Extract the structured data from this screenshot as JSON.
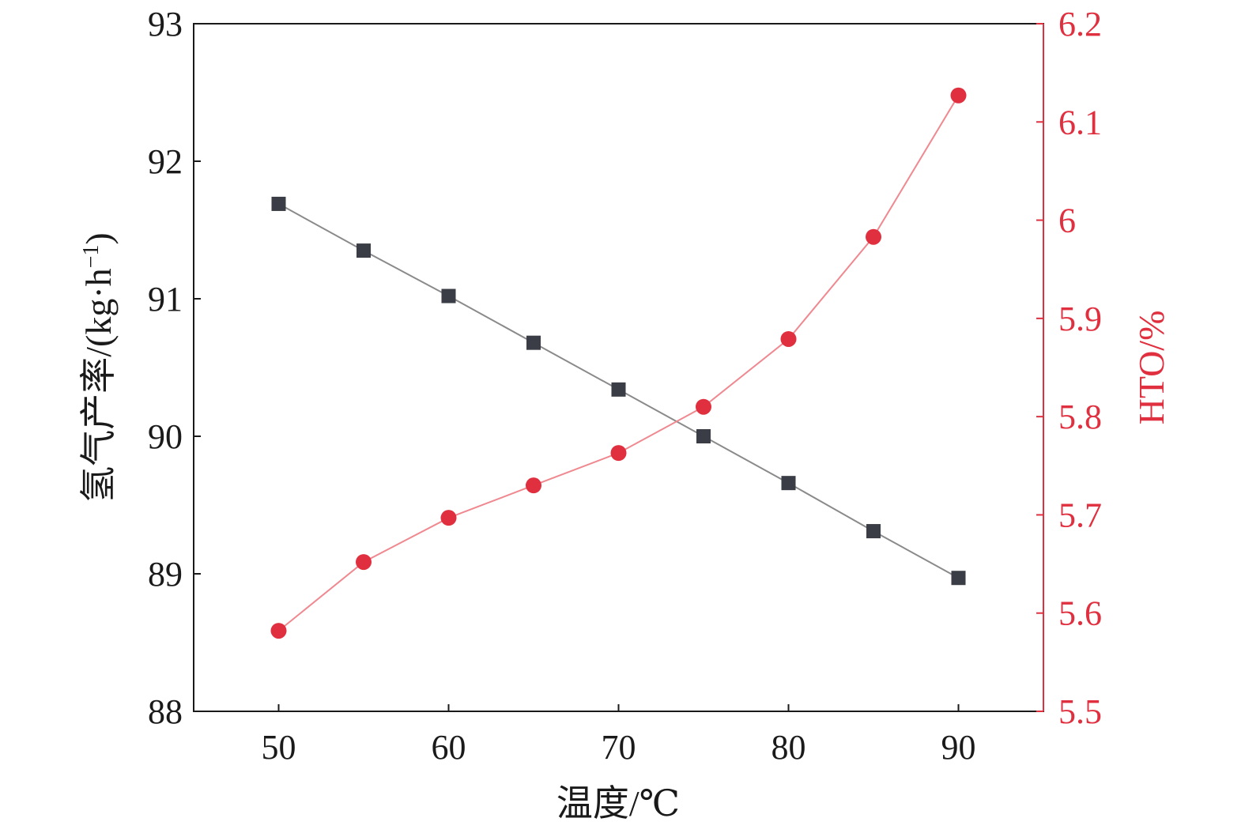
{
  "colors": {
    "axis": "#1a1a1a",
    "left_series": "#3a3d45",
    "left_line": "#8a8a8a",
    "right_series": "#e0303f",
    "right_line": "#f08890",
    "right_axis": "#e0303f"
  },
  "chart_data": {
    "type": "line",
    "xlabel": "温度/℃",
    "ylabel_left": "氢气产率/(kg·h",
    "ylabel_left_sup": "−1",
    "ylabel_left_end": ")",
    "ylabel_right": "HTO/%",
    "xlim": [
      45,
      95
    ],
    "ylim_left": [
      88,
      93
    ],
    "ylim_right": [
      5.5,
      6.2
    ],
    "x_ticks": [
      "50",
      "60",
      "70",
      "80",
      "90"
    ],
    "y_left_ticks": [
      "88",
      "89",
      "90",
      "91",
      "92",
      "93"
    ],
    "y_right_ticks": [
      "5.5",
      "5.6",
      "5.7",
      "5.8",
      "5.9",
      "6",
      "6.1",
      "6.2"
    ],
    "grid": false,
    "legend": "none",
    "x": [
      50,
      55,
      60,
      65,
      70,
      75,
      80,
      85,
      90
    ],
    "series": [
      {
        "axis": "left",
        "marker": "square",
        "values": [
          91.69,
          91.35,
          91.02,
          90.68,
          90.34,
          90.0,
          89.66,
          89.31,
          88.97
        ]
      },
      {
        "axis": "right",
        "marker": "circle",
        "values": [
          5.582,
          5.652,
          5.697,
          5.73,
          5.763,
          5.81,
          5.879,
          5.983,
          6.127
        ]
      }
    ]
  }
}
